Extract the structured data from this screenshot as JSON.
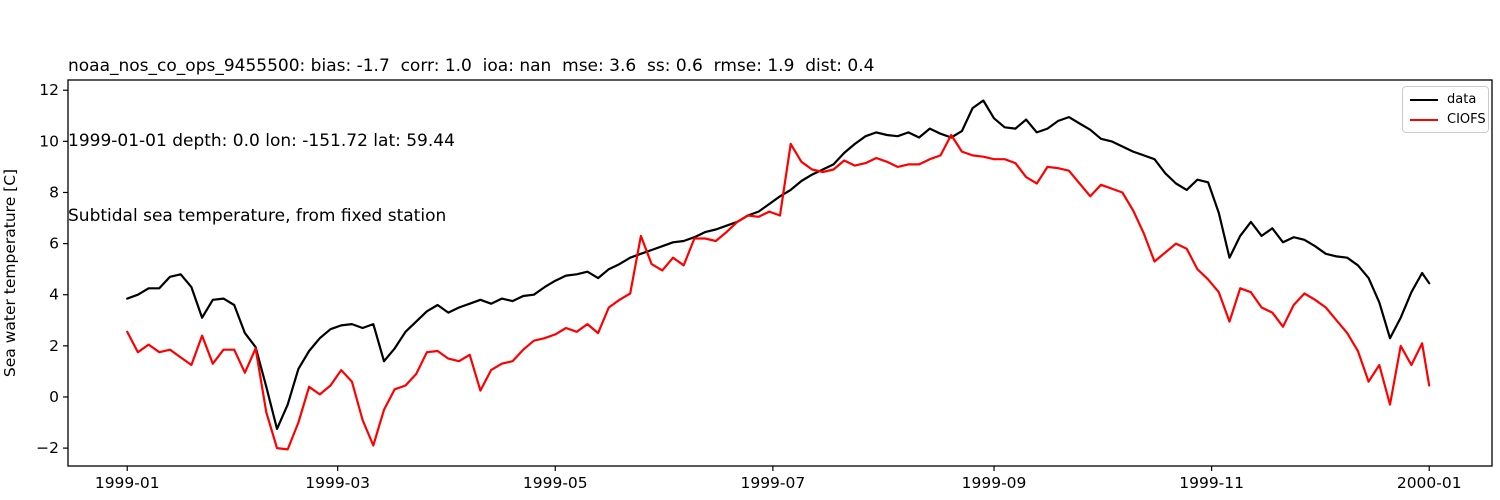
{
  "header": {
    "line1": "noaa_nos_co_ops_9455500: bias: -1.7  corr: 1.0  ioa: nan  mse: 3.6  ss: 0.6  rmse: 1.9  dist: 0.4",
    "line2": "1999-01-01 depth: 0.0 lon: -151.72 lat: 59.44",
    "line3": "Subtidal sea temperature, from fixed station"
  },
  "chart_data": {
    "type": "line",
    "title": "noaa_nos_co_ops_9455500: bias: -1.7  corr: 1.0  ioa: nan  mse: 3.6  ss: 0.6  rmse: 1.9  dist: 0.4",
    "subtitle": "1999-01-01 depth: 0.0 lon: -151.72 lat: 59.44",
    "axes_title": "Subtidal sea temperature, from fixed station",
    "xlabel": "",
    "ylabel": "Sea water temperature [C]",
    "grid": false,
    "legend_position": "upper right",
    "x_unit": "days since 1999-01-01",
    "xlim_days": [
      -16.6,
      382.6
    ],
    "ylim": [
      -2.7,
      12.4
    ],
    "x_ticks": [
      {
        "day": 0,
        "label": "1999-01"
      },
      {
        "day": 59,
        "label": "1999-03"
      },
      {
        "day": 120,
        "label": "1999-05"
      },
      {
        "day": 181,
        "label": "1999-07"
      },
      {
        "day": 243,
        "label": "1999-09"
      },
      {
        "day": 304,
        "label": "1999-11"
      },
      {
        "day": 365,
        "label": "2000-01"
      }
    ],
    "y_ticks": [
      {
        "value": 12,
        "label": "12"
      },
      {
        "value": 10,
        "label": "10"
      },
      {
        "value": 8,
        "label": "8"
      },
      {
        "value": 6,
        "label": "6"
      },
      {
        "value": 4,
        "label": "4"
      },
      {
        "value": 2,
        "label": "2"
      },
      {
        "value": 0,
        "label": "0"
      },
      {
        "value": -2,
        "label": "−2"
      }
    ],
    "x_days": [
      0,
      3,
      6,
      9,
      12,
      15,
      18,
      21,
      24,
      27,
      30,
      33,
      36,
      39,
      42,
      45,
      48,
      51,
      54,
      57,
      60,
      63,
      66,
      69,
      72,
      75,
      78,
      81,
      84,
      87,
      90,
      93,
      96,
      99,
      102,
      105,
      108,
      111,
      114,
      117,
      120,
      123,
      126,
      129,
      132,
      135,
      138,
      141,
      144,
      147,
      150,
      153,
      156,
      159,
      162,
      165,
      168,
      171,
      174,
      177,
      180,
      183,
      186,
      189,
      192,
      195,
      198,
      201,
      204,
      207,
      210,
      213,
      216,
      219,
      222,
      225,
      228,
      231,
      234,
      237,
      240,
      243,
      246,
      249,
      252,
      255,
      258,
      261,
      264,
      267,
      270,
      273,
      276,
      279,
      282,
      285,
      288,
      291,
      294,
      297,
      300,
      303,
      306,
      309,
      312,
      315,
      318,
      321,
      324,
      327,
      330,
      333,
      336,
      339,
      342,
      345,
      348,
      351,
      354,
      357,
      360,
      363,
      365
    ],
    "series": [
      {
        "name": "data",
        "color": "#000000",
        "values": [
          3.85,
          4.0,
          4.25,
          4.25,
          4.7,
          4.8,
          4.3,
          3.1,
          3.8,
          3.85,
          3.6,
          2.5,
          1.95,
          0.4,
          -1.25,
          -0.3,
          1.1,
          1.8,
          2.3,
          2.65,
          2.8,
          2.85,
          2.7,
          2.85,
          1.4,
          1.9,
          2.55,
          2.95,
          3.35,
          3.6,
          3.3,
          3.5,
          3.65,
          3.8,
          3.65,
          3.85,
          3.75,
          3.95,
          4.0,
          4.3,
          4.55,
          4.75,
          4.8,
          4.9,
          4.65,
          5.0,
          5.2,
          5.45,
          5.6,
          5.75,
          5.9,
          6.05,
          6.1,
          6.25,
          6.45,
          6.55,
          6.7,
          6.85,
          7.1,
          7.25,
          7.55,
          7.85,
          8.1,
          8.45,
          8.7,
          8.9,
          9.1,
          9.55,
          9.9,
          10.2,
          10.35,
          10.25,
          10.2,
          10.35,
          10.15,
          10.5,
          10.3,
          10.15,
          10.4,
          11.3,
          11.6,
          10.9,
          10.55,
          10.5,
          10.85,
          10.35,
          10.5,
          10.8,
          10.95,
          10.7,
          10.45,
          10.1,
          10.0,
          9.8,
          9.6,
          9.45,
          9.3,
          8.75,
          8.35,
          8.1,
          8.5,
          8.4,
          7.2,
          5.45,
          6.3,
          6.85,
          6.3,
          6.6,
          6.05,
          6.25,
          6.15,
          5.9,
          5.6,
          5.5,
          5.45,
          5.15,
          4.65,
          3.7,
          2.3,
          3.1,
          4.1,
          4.85,
          4.45
        ]
      },
      {
        "name": "CIOFS",
        "color": "#ff0000",
        "values": [
          2.55,
          1.75,
          2.05,
          1.75,
          1.85,
          1.55,
          1.25,
          2.4,
          1.3,
          1.85,
          1.85,
          0.95,
          1.9,
          -0.6,
          -2.0,
          -2.05,
          -1.0,
          0.4,
          0.1,
          0.45,
          1.05,
          0.6,
          -0.9,
          -1.9,
          -0.5,
          0.3,
          0.45,
          0.9,
          1.75,
          1.8,
          1.5,
          1.4,
          1.65,
          0.25,
          1.05,
          1.3,
          1.4,
          1.85,
          2.2,
          2.3,
          2.45,
          2.7,
          2.55,
          2.85,
          2.5,
          3.5,
          3.8,
          4.05,
          6.3,
          5.2,
          4.95,
          5.45,
          5.15,
          6.2,
          6.2,
          6.1,
          6.45,
          6.85,
          7.1,
          7.05,
          7.25,
          7.1,
          9.9,
          9.2,
          8.9,
          8.8,
          8.9,
          9.25,
          9.05,
          9.15,
          9.35,
          9.2,
          9.0,
          9.1,
          9.1,
          9.3,
          9.45,
          10.25,
          9.6,
          9.45,
          9.4,
          9.3,
          9.3,
          9.15,
          8.6,
          8.35,
          9.0,
          8.95,
          8.85,
          8.35,
          7.85,
          8.3,
          8.15,
          8.0,
          7.3,
          6.4,
          5.3,
          5.65,
          6.0,
          5.8,
          5.0,
          4.6,
          4.1,
          2.95,
          4.25,
          4.1,
          3.5,
          3.3,
          2.75,
          3.6,
          4.05,
          3.8,
          3.5,
          3.0,
          2.5,
          1.8,
          0.6,
          1.25,
          -0.3,
          2.0,
          1.25,
          2.1,
          0.45
        ]
      }
    ]
  }
}
